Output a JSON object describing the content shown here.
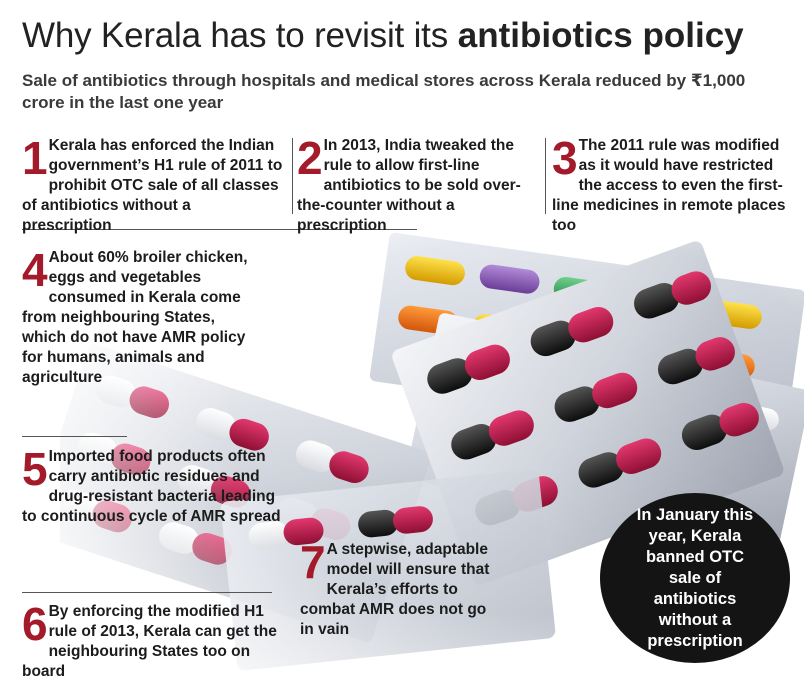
{
  "header": {
    "title_plain": "Why Kerala has to revisit its",
    "title_bold": "antibiotics policy",
    "subtitle": "Sale of antibiotics through hospitals and medical stores across Kerala reduced by ₹1,000 crore in the last one year"
  },
  "points": [
    {
      "num": "1",
      "text": "Kerala has enforced the Indian government’s H1 rule of 2011 to prohibit OTC sale of all classes of antibiotics without a prescription"
    },
    {
      "num": "2",
      "text": "In 2013, India tweaked the rule to allow first-line antibiotics to be sold over-the-counter without a prescription"
    },
    {
      "num": "3",
      "text": "The 2011 rule was modified as it would have restricted the access to even the first-line medicines in remote places too"
    },
    {
      "num": "4",
      "text": "About 60% broiler chicken, eggs and vegetables consumed in Kerala come from neighbouring States, which do not have AMR policy for humans, animals and agriculture"
    },
    {
      "num": "5",
      "text": "Imported food products often carry antibiotic residues and drug-resistant bacteria leading to continuous cycle of AMR spread"
    },
    {
      "num": "6",
      "text": "By enforcing the modified H1 rule of 2013, Kerala can get the neighbouring States too on board"
    },
    {
      "num": "7",
      "text": "A stepwise, adaptable model will ensure that Kerala’s efforts to combat AMR does not go in vain"
    }
  ],
  "callout": {
    "text": "In January this year, Kerala banned OTC sale of antibiotics without a prescription"
  }
}
